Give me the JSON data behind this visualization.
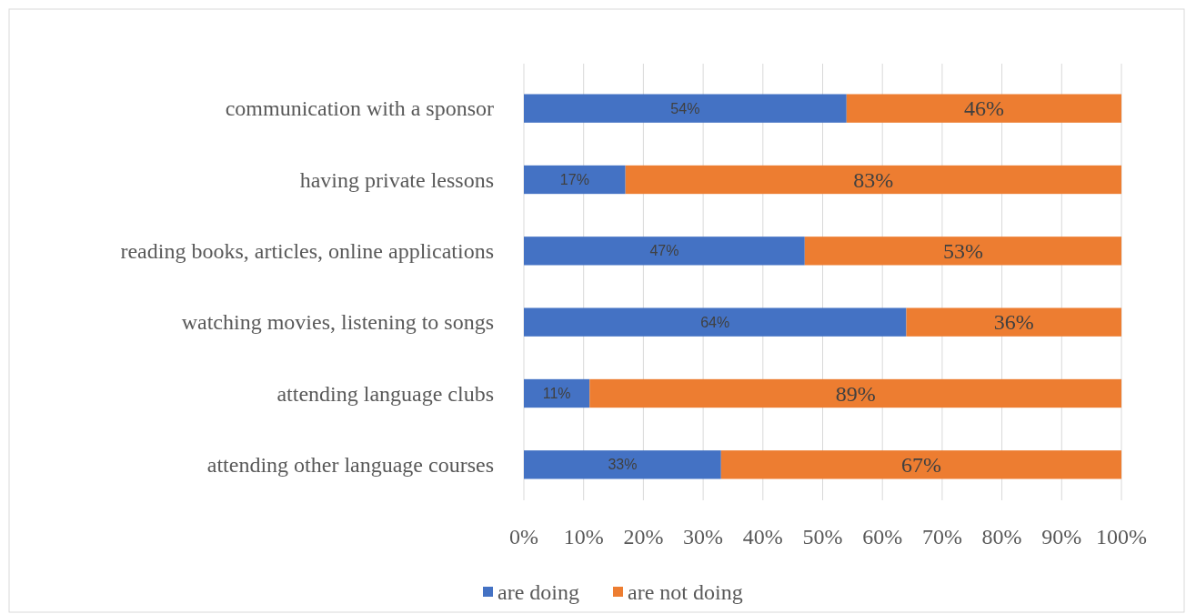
{
  "chart_data": {
    "type": "bar",
    "orientation": "horizontal",
    "stacked": true,
    "categories": [
      "communication with a sponsor",
      "having private lessons",
      "reading books, articles, online applications",
      "watching movies, listening to songs",
      "attending language clubs",
      "attending other language courses"
    ],
    "series": [
      {
        "name": "are doing",
        "color": "#4472c4",
        "values": [
          54,
          17,
          47,
          64,
          11,
          33
        ],
        "value_labels": [
          "54%",
          "17%",
          "47%",
          "64%",
          "11%",
          "33%"
        ]
      },
      {
        "name": "are not doing",
        "color": "#ed7d31",
        "values": [
          46,
          83,
          53,
          36,
          89,
          67
        ],
        "value_labels": [
          "46%",
          "83%",
          "53%",
          "36%",
          "89%",
          "67%"
        ]
      }
    ],
    "xlim": [
      0,
      100
    ],
    "xticks": [
      {
        "value": 0,
        "label": "0%"
      },
      {
        "value": 10,
        "label": "10%"
      },
      {
        "value": 20,
        "label": "20%"
      },
      {
        "value": 30,
        "label": "30%"
      },
      {
        "value": 40,
        "label": "40%"
      },
      {
        "value": 50,
        "label": "50%"
      },
      {
        "value": 60,
        "label": "60%"
      },
      {
        "value": 70,
        "label": "70%"
      },
      {
        "value": 80,
        "label": "80%"
      },
      {
        "value": 90,
        "label": "90%"
      },
      {
        "value": 100,
        "label": "100%"
      }
    ],
    "grid": "x",
    "legend": "bottom"
  }
}
